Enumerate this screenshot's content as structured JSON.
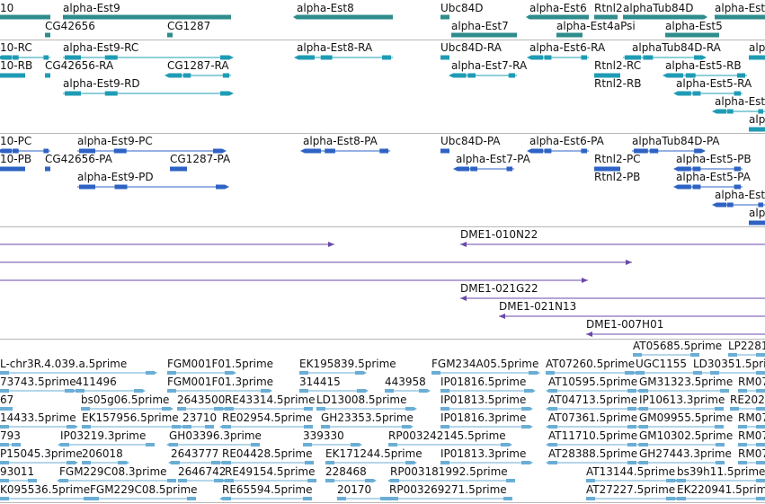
{
  "browser": {
    "colors": {
      "gene": "#2f8c8c",
      "transcript_rna": "#1f9cb5",
      "protein": "#2e63c4",
      "clone": "#6a49a8",
      "est": "#6aaed6",
      "separator": "#b8b8b8",
      "text": "#111111"
    },
    "tracks": [
      {
        "id": "genes",
        "features": [
          {
            "label": "10"
          },
          {
            "label": "alpha-Est9"
          },
          {
            "label": "alpha-Est8"
          },
          {
            "label": "Ubc84D"
          },
          {
            "label": "alpha-Est6"
          },
          {
            "label": "Rtnl2"
          },
          {
            "label": "alphaTub84D"
          },
          {
            "label": "alpha-Est"
          },
          {
            "label": "alpha-Est7"
          },
          {
            "label": "alpha-Est4aPsi"
          },
          {
            "label": "alpha-Est5"
          },
          {
            "label": "CG42656"
          },
          {
            "label": "CG1287"
          }
        ]
      },
      {
        "id": "transcripts",
        "features": [
          {
            "label": "10-RC"
          },
          {
            "label": "alpha-Est9-RC"
          },
          {
            "label": "alpha-Est8-RA"
          },
          {
            "label": "Ubc84D-RA"
          },
          {
            "label": "alpha-Est6-RA"
          },
          {
            "label": "alphaTub84D-RA"
          },
          {
            "label": "alpha-Est"
          },
          {
            "label": "10-RB"
          },
          {
            "label": "CG42656-RA"
          },
          {
            "label": "CG1287-RA"
          },
          {
            "label": "alpha-Est7-RA"
          },
          {
            "label": "Rtnl2-RC"
          },
          {
            "label": "alpha-Est5-RB"
          },
          {
            "label": "alpha-Est9-RD"
          },
          {
            "label": "Rtnl2-RB"
          },
          {
            "label": "alpha-Est5-RA"
          },
          {
            "label": "alpha-Est"
          },
          {
            "label": "alpha-Est"
          }
        ]
      },
      {
        "id": "proteins",
        "features": [
          {
            "label": "10-PC"
          },
          {
            "label": "alpha-Est9-PC"
          },
          {
            "label": "alpha-Est8-PA"
          },
          {
            "label": "Ubc84D-PA"
          },
          {
            "label": "alpha-Est6-PA"
          },
          {
            "label": "alphaTub84D-PA"
          },
          {
            "label": "10-PB"
          },
          {
            "label": "CG42656-PA"
          },
          {
            "label": "CG1287-PA"
          },
          {
            "label": "alpha-Est7-PA"
          },
          {
            "label": "Rtnl2-PC"
          },
          {
            "label": "alpha-Est5-PB"
          },
          {
            "label": "alpha-Est9-PD"
          },
          {
            "label": "Rtnl2-PB"
          },
          {
            "label": "alpha-Est5-PA"
          },
          {
            "label": "alpha-Est"
          },
          {
            "label": "alpha-Est"
          }
        ]
      },
      {
        "id": "clones",
        "features": [
          {
            "label": ""
          },
          {
            "label": "DME1-010N22"
          },
          {
            "label": ""
          },
          {
            "label": ""
          },
          {
            "label": "DME1-021G22"
          },
          {
            "label": "DME1-021N13"
          },
          {
            "label": "DME1-007H01"
          }
        ]
      },
      {
        "id": "ests",
        "features": [
          {
            "label": "AT05685.5prime"
          },
          {
            "label": "LP2281"
          },
          {
            "label": "L-chr3R.4.039.a.5prime"
          },
          {
            "label": "FGM001F01.5prime"
          },
          {
            "label": "EK195839.5prime"
          },
          {
            "label": "FGM234A05.5prime"
          },
          {
            "label": "AT07260.5prime"
          },
          {
            "label": "UGC1155"
          },
          {
            "label": "LD30351.5prime"
          },
          {
            "label": "73743.5prime"
          },
          {
            "label": "411496"
          },
          {
            "label": "FGM001F01.3prime"
          },
          {
            "label": "314415"
          },
          {
            "label": "443958"
          },
          {
            "label": "IP01816.5prime"
          },
          {
            "label": "AT10595.5prime"
          },
          {
            "label": "GM31323.5prime"
          },
          {
            "label": "RM07"
          },
          {
            "label": "67"
          },
          {
            "label": "bs05g06.5prime"
          },
          {
            "label": "2643500"
          },
          {
            "label": "RE43314.5prime"
          },
          {
            "label": "LD13008.5prime"
          },
          {
            "label": "IP01813.5prime"
          },
          {
            "label": "AT04713.5prime"
          },
          {
            "label": "IP10613.3prime"
          },
          {
            "label": "RE202"
          },
          {
            "label": "14433.5prime"
          },
          {
            "label": "EK157956.5prime"
          },
          {
            "label": "23710"
          },
          {
            "label": "RE02954.5prime"
          },
          {
            "label": "GH23353.5prime"
          },
          {
            "label": "IP01816.3prime"
          },
          {
            "label": "AT07361.5prime"
          },
          {
            "label": "GM09955.5prime"
          },
          {
            "label": "RM07"
          },
          {
            "label": "793"
          },
          {
            "label": "IP03219.3prime"
          },
          {
            "label": "GH03396.3prime"
          },
          {
            "label": "339330"
          },
          {
            "label": "RP003242145.5prime"
          },
          {
            "label": "AT11710.5prime"
          },
          {
            "label": "GM10302.5prime"
          },
          {
            "label": "RM07"
          },
          {
            "label": "P15045.3prime"
          },
          {
            "label": "206018"
          },
          {
            "label": "2643777"
          },
          {
            "label": "RE04428.5prime"
          },
          {
            "label": "EK171244.5prime"
          },
          {
            "label": "IP01813.3prime"
          },
          {
            "label": "AT28388.5prime"
          },
          {
            "label": "GH27443.3prime"
          },
          {
            "label": "RM07"
          },
          {
            "label": "93011"
          },
          {
            "label": "FGM229C08.3prime"
          },
          {
            "label": "2646742"
          },
          {
            "label": "RE49154.5prime"
          },
          {
            "label": "228468"
          },
          {
            "label": "RP003181992.5prime"
          },
          {
            "label": "AT13144.5prime"
          },
          {
            "label": "bs39h11.5prime"
          },
          {
            "label": "K095536.5prime"
          },
          {
            "label": "FGM229C08.5prime"
          },
          {
            "label": "RE65594.5prime"
          },
          {
            "label": "20170"
          },
          {
            "label": "RP003269271.5prime"
          },
          {
            "label": "AT27227.5prime"
          },
          {
            "label": "EK220941.5prime"
          }
        ]
      }
    ]
  }
}
